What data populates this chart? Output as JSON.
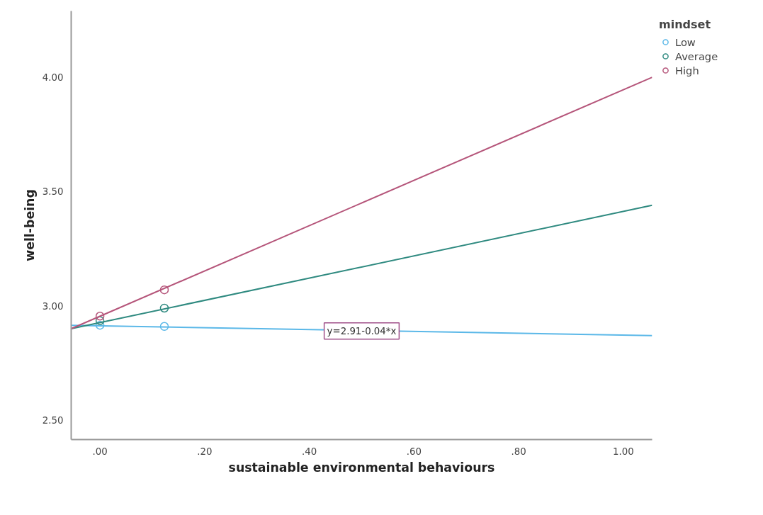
{
  "chart_data": {
    "type": "scatter",
    "xlabel": "sustainable environmental behaviours",
    "ylabel": "well-being",
    "legend_title": "mindset",
    "legend": "top right",
    "grid": false,
    "marker": "circle",
    "xlim": [
      -0.055,
      1.055
    ],
    "ylim": [
      2.415,
      4.29
    ],
    "xticks": [
      {
        "value": 0,
        "label": ".00"
      },
      {
        "value": 0.2,
        "label": ".20"
      },
      {
        "value": 0.4,
        "label": ".40"
      },
      {
        "value": 0.6,
        "label": ".60"
      },
      {
        "value": 0.8,
        "label": ".80"
      },
      {
        "value": 1.0,
        "label": "1.00"
      }
    ],
    "yticks": [
      {
        "value": 2.5,
        "label": "2.50"
      },
      {
        "value": 3.0,
        "label": "3.00"
      },
      {
        "value": 3.5,
        "label": "3.50"
      },
      {
        "value": 4.0,
        "label": "4.00"
      }
    ],
    "series": [
      {
        "name": "Low",
        "color": "#5bb8e8",
        "x": [
          0,
          0.123
        ],
        "values": [
          2.915,
          2.91
        ]
      },
      {
        "name": "Average",
        "color": "#2f8a80",
        "x": [
          0,
          0.123
        ],
        "values": [
          2.935,
          2.99
        ]
      },
      {
        "name": "High",
        "color": "#b5557a",
        "x": [
          0,
          0.123
        ],
        "values": [
          2.955,
          3.07
        ]
      },
      {
        "type": "line",
        "marker": "none",
        "color": "#5bb8e8",
        "x": [
          -0.055,
          1.055
        ],
        "values": [
          2.915,
          2.87
        ]
      },
      {
        "type": "line",
        "marker": "none",
        "color": "#2f8a80",
        "x": [
          -0.055,
          1.055
        ],
        "values": [
          2.9,
          3.44
        ]
      },
      {
        "type": "line",
        "marker": "none",
        "color": "#b5557a",
        "x": [
          -0.055,
          1.055
        ],
        "values": [
          2.9,
          4.0
        ]
      }
    ],
    "annotations": [
      {
        "text": "y=2.91-0.04*x",
        "x": 0.5,
        "y": 2.89
      }
    ]
  }
}
